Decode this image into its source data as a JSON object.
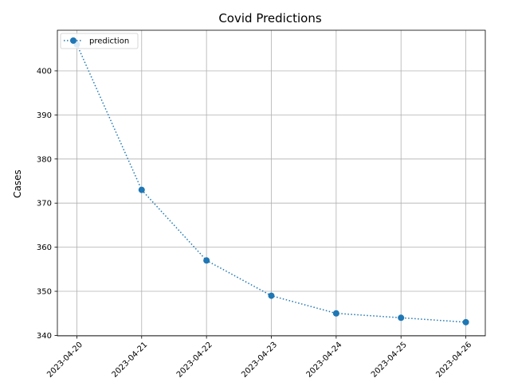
{
  "chart_data": {
    "type": "line",
    "title": "Covid Predictions",
    "xlabel": "",
    "ylabel": "Cases",
    "x": [
      "2023-04-20",
      "2023-04-21",
      "2023-04-22",
      "2023-04-23",
      "2023-04-24",
      "2023-04-25",
      "2023-04-26"
    ],
    "series": [
      {
        "name": "prediction",
        "values": [
          406,
          373,
          357,
          349,
          345,
          344,
          343
        ],
        "color": "#1f77b4",
        "linestyle": "dotted",
        "marker": "circle"
      }
    ],
    "yticks": [
      340,
      350,
      360,
      370,
      380,
      390,
      400
    ],
    "ylim": [
      339.9,
      409.2
    ],
    "grid": true,
    "legend_location": "upper-left"
  }
}
